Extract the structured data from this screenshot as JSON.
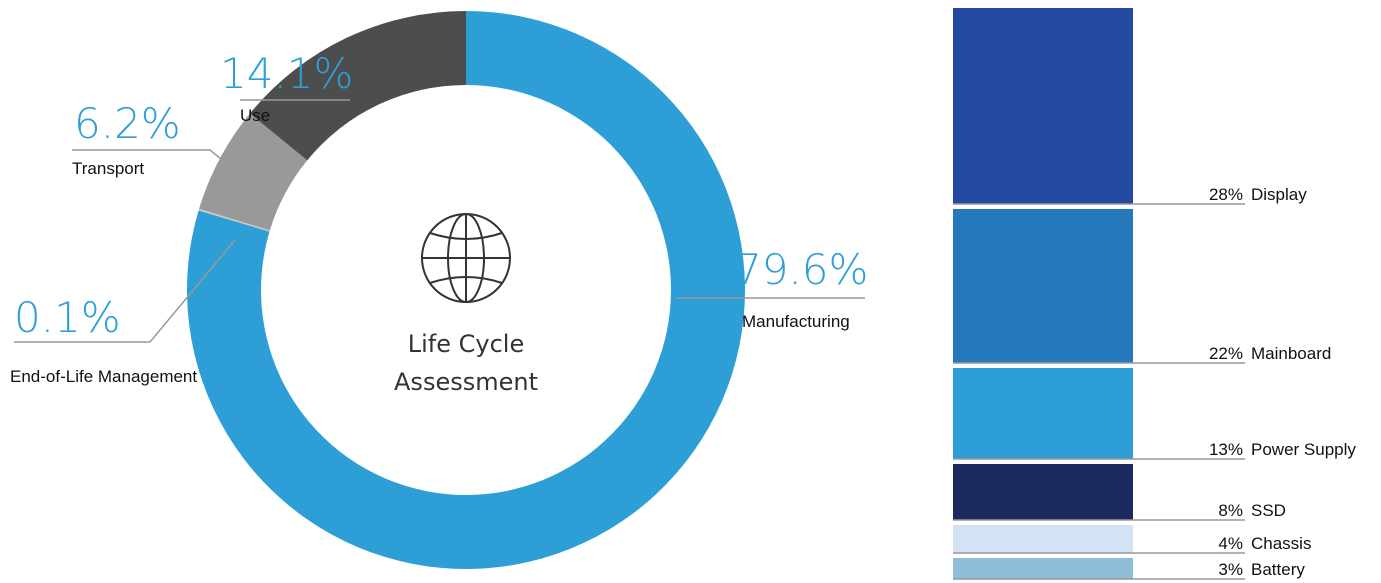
{
  "chart_data": [
    {
      "type": "donut",
      "center_label": [
        "Life Cycle",
        "Assessment"
      ],
      "categories": [
        "Manufacturing",
        "End-of-Life Management",
        "Transport",
        "Use"
      ],
      "values": [
        79.6,
        0.1,
        6.2,
        14.1
      ],
      "value_labels": [
        "79.6%",
        "0.1%",
        "6.2%",
        "14.1%"
      ],
      "colors": [
        "#2e9fd6",
        "#c8c8c8",
        "#999999",
        "#4d4d4d"
      ]
    },
    {
      "type": "stacked-bar",
      "categories": [
        "Display",
        "Mainboard",
        "Power Supply",
        "SSD",
        "Chassis",
        "Battery"
      ],
      "values": [
        28,
        22,
        13,
        8,
        4,
        3
      ],
      "value_labels": [
        "28%",
        "22%",
        "13%",
        "8%",
        "4%",
        "3%"
      ],
      "colors": [
        "#2349a0",
        "#2578bc",
        "#2e9fd6",
        "#1b2a5e",
        "#d3e3f3",
        "#8fbcd6"
      ]
    }
  ]
}
